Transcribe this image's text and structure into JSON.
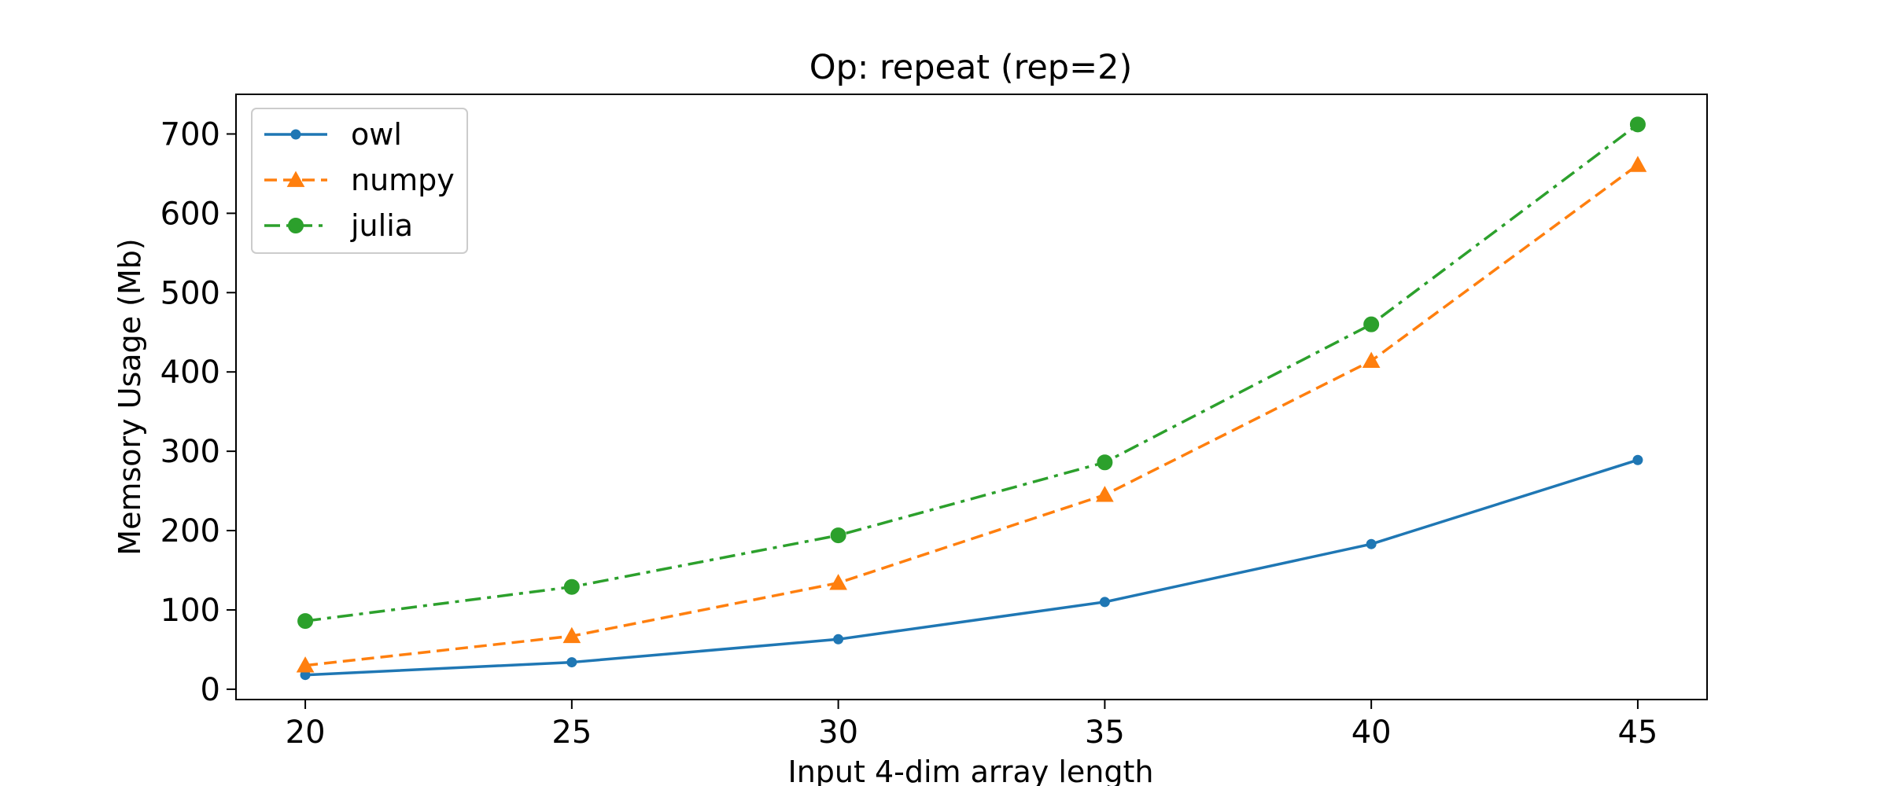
{
  "chart_data": {
    "type": "line",
    "title": "Op: repeat (rep=2)",
    "xlabel": "Input 4-dim array length",
    "ylabel": "Memsory Usage (Mb)",
    "x": [
      20,
      25,
      30,
      35,
      40,
      45
    ],
    "xticks": [
      "20",
      "25",
      "30",
      "35",
      "40",
      "45"
    ],
    "yticks": [
      "0",
      "100",
      "200",
      "300",
      "400",
      "500",
      "600",
      "700"
    ],
    "xlim": [
      18.7,
      46.3
    ],
    "ylim": [
      -13,
      750
    ],
    "grid": false,
    "legend_position": "top-left",
    "series": [
      {
        "name": "owl",
        "values": [
          18,
          34,
          63,
          110,
          183,
          289
        ],
        "color": "#1f77b4",
        "line_style": "solid",
        "marker": "point"
      },
      {
        "name": "numpy",
        "values": [
          30,
          67,
          134,
          245,
          414,
          661
        ],
        "color": "#ff7f0e",
        "line_style": "dashed",
        "marker": "triangle"
      },
      {
        "name": "julia",
        "values": [
          86,
          129,
          194,
          286,
          460,
          712
        ],
        "color": "#2ca02c",
        "line_style": "dash-dot",
        "marker": "circle"
      }
    ]
  }
}
